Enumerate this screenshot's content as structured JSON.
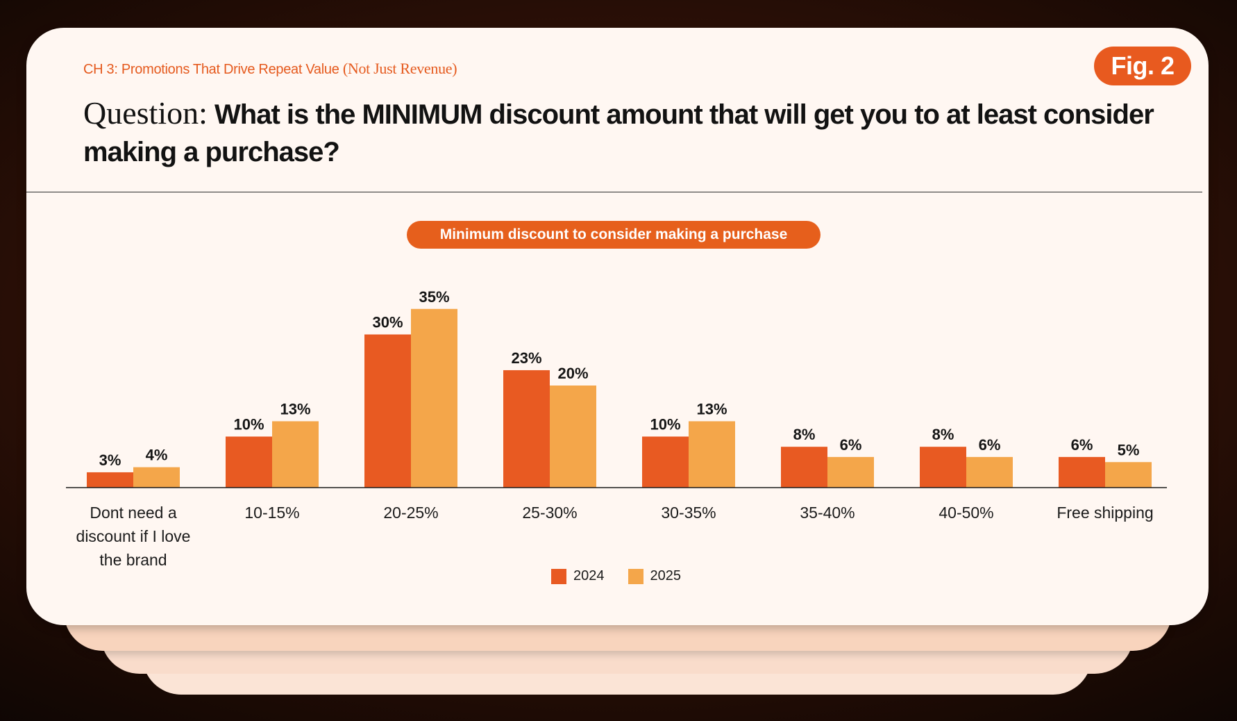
{
  "header": {
    "chapter_prefix": "CH 3: Promotions That Drive Repeat Value",
    "chapter_suffix": "(Not Just Revenue)",
    "fig_label": "Fig. 2",
    "question_lead": "Question:",
    "question_text": "What is the MINIMUM discount amount that will get you to at least consider making a purchase?"
  },
  "colors": {
    "accent": "#e85a1f",
    "series_2024": "#e85a22",
    "series_2025": "#f4a64a",
    "card": "#fff7f2"
  },
  "chart_data": {
    "type": "bar",
    "title": "Minimum discount to consider making a purchase",
    "categories": [
      [
        "Dont need a",
        "discount if I love",
        "the brand"
      ],
      [
        "10-15%"
      ],
      [
        "20-25%"
      ],
      [
        "25-30%"
      ],
      [
        "30-35%"
      ],
      [
        "35-40%"
      ],
      [
        "40-50%"
      ],
      [
        "Free shipping"
      ]
    ],
    "series": [
      {
        "name": "2024",
        "values": [
          3,
          10,
          30,
          23,
          10,
          8,
          8,
          6
        ],
        "labels": [
          "3%",
          "10%",
          "30%",
          "23%",
          "10%",
          "8%",
          "8%",
          "6%"
        ]
      },
      {
        "name": "2025",
        "values": [
          4,
          13,
          35,
          20,
          13,
          6,
          6,
          5
        ],
        "labels": [
          "4%",
          "13%",
          "35%",
          "20%",
          "13%",
          "6%",
          "6%",
          "5%"
        ]
      }
    ],
    "legend_position": "bottom-center",
    "grid": false
  }
}
